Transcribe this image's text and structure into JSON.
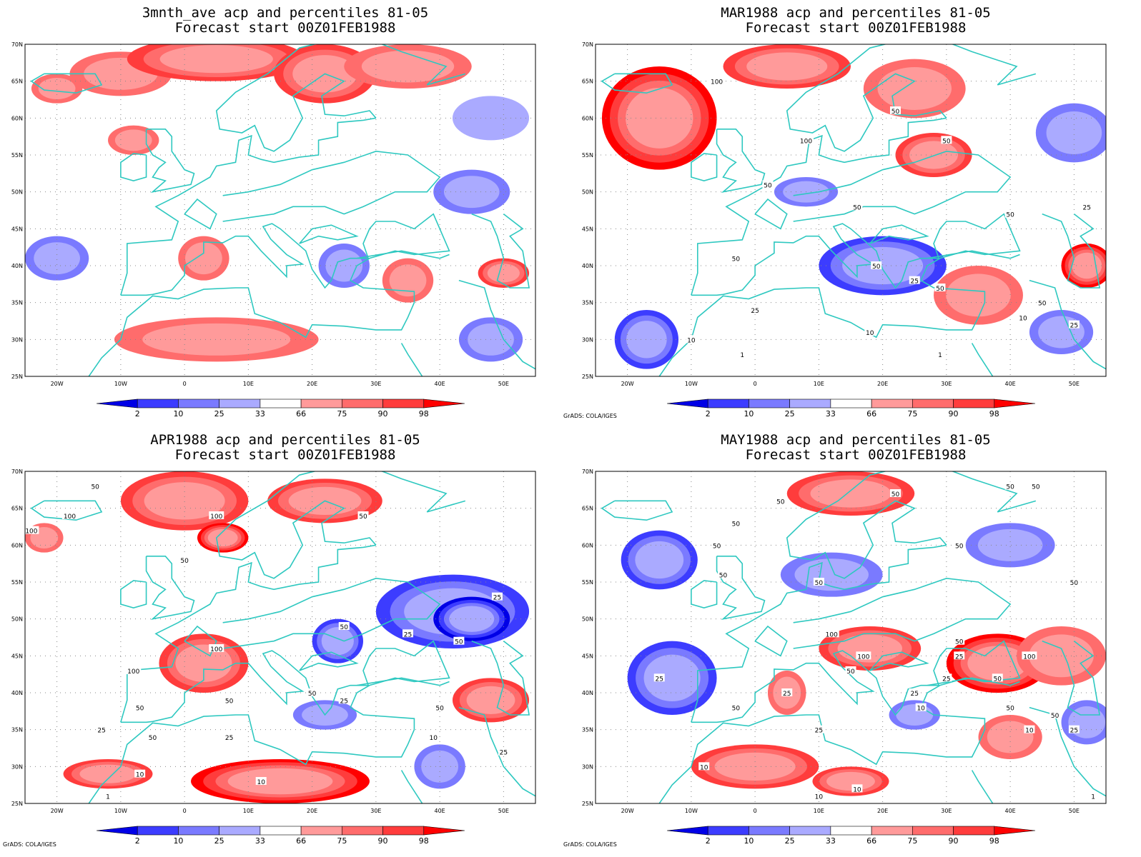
{
  "colors": {
    "coast": "#2ec8c0",
    "contour": "#000000",
    "grid": "#888888",
    "shades": [
      "#0000e6",
      "#3c3cff",
      "#7a7aff",
      "#aaaaff",
      "#ffffff",
      "#ff9a9a",
      "#ff6c6c",
      "#ff3c3c",
      "#ff0000"
    ]
  },
  "axes": {
    "lat_labels": [
      "70N",
      "65N",
      "60N",
      "55N",
      "50N",
      "45N",
      "40N",
      "35N",
      "30N",
      "25N"
    ],
    "lon_labels": [
      "20W",
      "10W",
      "0",
      "10E",
      "20E",
      "30E",
      "40E",
      "50E"
    ]
  },
  "colorbar": {
    "labels": [
      "2",
      "10",
      "25",
      "33",
      "66",
      "75",
      "90",
      "98"
    ]
  },
  "credit": "GrADS: COLA/IGES",
  "panels": [
    {
      "title_line1": "3mnth_ave acp and percentiles 81-05",
      "title_line2": "Forecast start 00Z01FEB1988",
      "show_credit": false,
      "blobs": [
        {
          "lon": -10,
          "lat": 66,
          "rx": 8,
          "ry": 3,
          "level": 6
        },
        {
          "lon": 5,
          "lat": 68,
          "rx": 14,
          "ry": 3,
          "level": 7
        },
        {
          "lon": 22,
          "lat": 66,
          "rx": 8,
          "ry": 4,
          "level": 7
        },
        {
          "lon": 35,
          "lat": 67,
          "rx": 10,
          "ry": 3,
          "level": 6
        },
        {
          "lon": -20,
          "lat": 64,
          "rx": 4,
          "ry": 2,
          "level": 6
        },
        {
          "lon": -8,
          "lat": 57,
          "rx": 4,
          "ry": 2,
          "level": 6
        },
        {
          "lon": 48,
          "lat": 60,
          "rx": 6,
          "ry": 3,
          "level": 3
        },
        {
          "lon": 45,
          "lat": 50,
          "rx": 6,
          "ry": 3,
          "level": 2
        },
        {
          "lon": -20,
          "lat": 41,
          "rx": 5,
          "ry": 3,
          "level": 2
        },
        {
          "lon": 3,
          "lat": 41,
          "rx": 4,
          "ry": 3,
          "level": 6
        },
        {
          "lon": 25,
          "lat": 40,
          "rx": 4,
          "ry": 3,
          "level": 2
        },
        {
          "lon": 35,
          "lat": 38,
          "rx": 4,
          "ry": 3,
          "level": 6
        },
        {
          "lon": 50,
          "lat": 39,
          "rx": 4,
          "ry": 2,
          "level": 7
        },
        {
          "lon": 5,
          "lat": 30,
          "rx": 16,
          "ry": 3,
          "level": 6
        },
        {
          "lon": 48,
          "lat": 30,
          "rx": 5,
          "ry": 3,
          "level": 2
        }
      ],
      "contour_labels": []
    },
    {
      "title_line1": "MAR1988 acp and percentiles 81-05",
      "title_line2": "Forecast start 00Z01FEB1988",
      "show_credit": true,
      "blobs": [
        {
          "lon": -15,
          "lat": 60,
          "rx": 9,
          "ry": 7,
          "level": 8
        },
        {
          "lon": 5,
          "lat": 67,
          "rx": 10,
          "ry": 3,
          "level": 7
        },
        {
          "lon": 25,
          "lat": 64,
          "rx": 8,
          "ry": 4,
          "level": 6
        },
        {
          "lon": 28,
          "lat": 55,
          "rx": 6,
          "ry": 3,
          "level": 7
        },
        {
          "lon": 50,
          "lat": 58,
          "rx": 6,
          "ry": 4,
          "level": 2
        },
        {
          "lon": 20,
          "lat": 40,
          "rx": 10,
          "ry": 4,
          "level": 1
        },
        {
          "lon": -17,
          "lat": 30,
          "rx": 5,
          "ry": 4,
          "level": 1
        },
        {
          "lon": 35,
          "lat": 36,
          "rx": 7,
          "ry": 4,
          "level": 6
        },
        {
          "lon": 52,
          "lat": 40,
          "rx": 4,
          "ry": 3,
          "level": 8
        },
        {
          "lon": 8,
          "lat": 50,
          "rx": 5,
          "ry": 2,
          "level": 2
        },
        {
          "lon": 48,
          "lat": 31,
          "rx": 5,
          "ry": 3,
          "level": 2
        }
      ],
      "contour_labels": [
        {
          "text": "100",
          "lon": -6,
          "lat": 65
        },
        {
          "text": "100",
          "lon": 8,
          "lat": 57
        },
        {
          "text": "50",
          "lon": 22,
          "lat": 61
        },
        {
          "text": "50",
          "lon": 30,
          "lat": 57
        },
        {
          "text": "50",
          "lon": 2,
          "lat": 51
        },
        {
          "text": "50",
          "lon": 16,
          "lat": 48
        },
        {
          "text": "50",
          "lon": 40,
          "lat": 47
        },
        {
          "text": "25",
          "lon": 52,
          "lat": 48
        },
        {
          "text": "50",
          "lon": -3,
          "lat": 41
        },
        {
          "text": "50",
          "lon": 19,
          "lat": 40
        },
        {
          "text": "25",
          "lon": 25,
          "lat": 38
        },
        {
          "text": "50",
          "lon": 29,
          "lat": 37
        },
        {
          "text": "50",
          "lon": 45,
          "lat": 35
        },
        {
          "text": "25",
          "lon": 0,
          "lat": 34
        },
        {
          "text": "10",
          "lon": 18,
          "lat": 31
        },
        {
          "text": "10",
          "lon": 42,
          "lat": 33
        },
        {
          "text": "25",
          "lon": 50,
          "lat": 32
        },
        {
          "text": "10",
          "lon": -10,
          "lat": 30
        },
        {
          "text": "1",
          "lon": -2,
          "lat": 28
        },
        {
          "text": "1",
          "lon": 29,
          "lat": 28
        }
      ]
    },
    {
      "title_line1": "APR1988 acp and percentiles 81-05",
      "title_line2": "Forecast start 00Z01FEB1988",
      "show_credit": true,
      "blobs": [
        {
          "lon": 0,
          "lat": 66,
          "rx": 10,
          "ry": 4,
          "level": 7
        },
        {
          "lon": 22,
          "lat": 66,
          "rx": 9,
          "ry": 3,
          "level": 7
        },
        {
          "lon": 6,
          "lat": 61,
          "rx": 4,
          "ry": 2,
          "level": 8
        },
        {
          "lon": -22,
          "lat": 61,
          "rx": 3,
          "ry": 2,
          "level": 6
        },
        {
          "lon": 42,
          "lat": 51,
          "rx": 12,
          "ry": 5,
          "level": 1
        },
        {
          "lon": 45,
          "lat": 50,
          "rx": 6,
          "ry": 3,
          "level": 0
        },
        {
          "lon": 24,
          "lat": 47,
          "rx": 4,
          "ry": 3,
          "level": 1
        },
        {
          "lon": 3,
          "lat": 44,
          "rx": 7,
          "ry": 4,
          "level": 7
        },
        {
          "lon": 15,
          "lat": 28,
          "rx": 14,
          "ry": 3,
          "level": 8
        },
        {
          "lon": 48,
          "lat": 39,
          "rx": 6,
          "ry": 3,
          "level": 7
        },
        {
          "lon": -12,
          "lat": 29,
          "rx": 7,
          "ry": 2,
          "level": 7
        },
        {
          "lon": 22,
          "lat": 37,
          "rx": 5,
          "ry": 2,
          "level": 2
        },
        {
          "lon": 40,
          "lat": 30,
          "rx": 4,
          "ry": 3,
          "level": 2
        }
      ],
      "contour_labels": [
        {
          "text": "50",
          "lon": -14,
          "lat": 68
        },
        {
          "text": "100",
          "lon": -18,
          "lat": 64
        },
        {
          "text": "100",
          "lon": -24,
          "lat": 62
        },
        {
          "text": "100",
          "lon": 5,
          "lat": 64
        },
        {
          "text": "50",
          "lon": 28,
          "lat": 64
        },
        {
          "text": "50",
          "lon": 0,
          "lat": 58
        },
        {
          "text": "100",
          "lon": 5,
          "lat": 46
        },
        {
          "text": "100",
          "lon": -8,
          "lat": 43
        },
        {
          "text": "50",
          "lon": 25,
          "lat": 49
        },
        {
          "text": "25",
          "lon": 35,
          "lat": 48
        },
        {
          "text": "50",
          "lon": 43,
          "lat": 47
        },
        {
          "text": "25",
          "lon": 49,
          "lat": 53
        },
        {
          "text": "50",
          "lon": -7,
          "lat": 38
        },
        {
          "text": "50",
          "lon": 7,
          "lat": 39
        },
        {
          "text": "50",
          "lon": 20,
          "lat": 40
        },
        {
          "text": "25",
          "lon": 25,
          "lat": 39
        },
        {
          "text": "50",
          "lon": 40,
          "lat": 38
        },
        {
          "text": "25",
          "lon": -13,
          "lat": 35
        },
        {
          "text": "50",
          "lon": -5,
          "lat": 34
        },
        {
          "text": "25",
          "lon": 7,
          "lat": 34
        },
        {
          "text": "10",
          "lon": 39,
          "lat": 34
        },
        {
          "text": "25",
          "lon": 50,
          "lat": 32
        },
        {
          "text": "10",
          "lon": -7,
          "lat": 29
        },
        {
          "text": "10",
          "lon": 12,
          "lat": 28
        },
        {
          "text": "1",
          "lon": -12,
          "lat": 26
        }
      ]
    },
    {
      "title_line1": "MAY1988 acp and percentiles 81-05",
      "title_line2": "Forecast start 00Z01FEB1988",
      "show_credit": true,
      "blobs": [
        {
          "lon": 15,
          "lat": 67,
          "rx": 10,
          "ry": 3,
          "level": 7
        },
        {
          "lon": -15,
          "lat": 58,
          "rx": 6,
          "ry": 4,
          "level": 1
        },
        {
          "lon": 40,
          "lat": 60,
          "rx": 7,
          "ry": 3,
          "level": 2
        },
        {
          "lon": 12,
          "lat": 56,
          "rx": 8,
          "ry": 3,
          "level": 2
        },
        {
          "lon": -13,
          "lat": 42,
          "rx": 7,
          "ry": 5,
          "level": 1
        },
        {
          "lon": 18,
          "lat": 46,
          "rx": 8,
          "ry": 3,
          "level": 7
        },
        {
          "lon": 38,
          "lat": 44,
          "rx": 8,
          "ry": 4,
          "level": 8
        },
        {
          "lon": 48,
          "lat": 45,
          "rx": 7,
          "ry": 4,
          "level": 6
        },
        {
          "lon": 0,
          "lat": 30,
          "rx": 10,
          "ry": 3,
          "level": 7
        },
        {
          "lon": 15,
          "lat": 28,
          "rx": 6,
          "ry": 2,
          "level": 7
        },
        {
          "lon": 40,
          "lat": 34,
          "rx": 5,
          "ry": 3,
          "level": 6
        },
        {
          "lon": 52,
          "lat": 36,
          "rx": 4,
          "ry": 3,
          "level": 2
        },
        {
          "lon": 25,
          "lat": 37,
          "rx": 4,
          "ry": 2,
          "level": 2
        },
        {
          "lon": 5,
          "lat": 40,
          "rx": 3,
          "ry": 3,
          "level": 6
        }
      ],
      "contour_labels": [
        {
          "text": "50",
          "lon": 4,
          "lat": 66
        },
        {
          "text": "50",
          "lon": 22,
          "lat": 67
        },
        {
          "text": "50",
          "lon": 40,
          "lat": 68
        },
        {
          "text": "50",
          "lon": 44,
          "lat": 68
        },
        {
          "text": "50",
          "lon": -3,
          "lat": 63
        },
        {
          "text": "50",
          "lon": -6,
          "lat": 60
        },
        {
          "text": "50",
          "lon": 32,
          "lat": 60
        },
        {
          "text": "50",
          "lon": -5,
          "lat": 56
        },
        {
          "text": "50",
          "lon": 10,
          "lat": 55
        },
        {
          "text": "50",
          "lon": 50,
          "lat": 55
        },
        {
          "text": "100",
          "lon": 12,
          "lat": 48
        },
        {
          "text": "100",
          "lon": 17,
          "lat": 45
        },
        {
          "text": "50",
          "lon": 32,
          "lat": 47
        },
        {
          "text": "25",
          "lon": 32,
          "lat": 45
        },
        {
          "text": "100",
          "lon": 43,
          "lat": 45
        },
        {
          "text": "50",
          "lon": 15,
          "lat": 43
        },
        {
          "text": "25",
          "lon": 30,
          "lat": 42
        },
        {
          "text": "50",
          "lon": 38,
          "lat": 42
        },
        {
          "text": "25",
          "lon": -15,
          "lat": 42
        },
        {
          "text": "25",
          "lon": 5,
          "lat": 40
        },
        {
          "text": "25",
          "lon": 25,
          "lat": 40
        },
        {
          "text": "10",
          "lon": 26,
          "lat": 38
        },
        {
          "text": "50",
          "lon": 40,
          "lat": 38
        },
        {
          "text": "50",
          "lon": 47,
          "lat": 37
        },
        {
          "text": "10",
          "lon": 43,
          "lat": 35
        },
        {
          "text": "25",
          "lon": 50,
          "lat": 35
        },
        {
          "text": "25",
          "lon": 10,
          "lat": 35
        },
        {
          "text": "50",
          "lon": -3,
          "lat": 38
        },
        {
          "text": "10",
          "lon": -8,
          "lat": 30
        },
        {
          "text": "10",
          "lon": 16,
          "lat": 27
        },
        {
          "text": "10",
          "lon": 10,
          "lat": 26
        },
        {
          "text": "1",
          "lon": 53,
          "lat": 26
        }
      ]
    }
  ]
}
